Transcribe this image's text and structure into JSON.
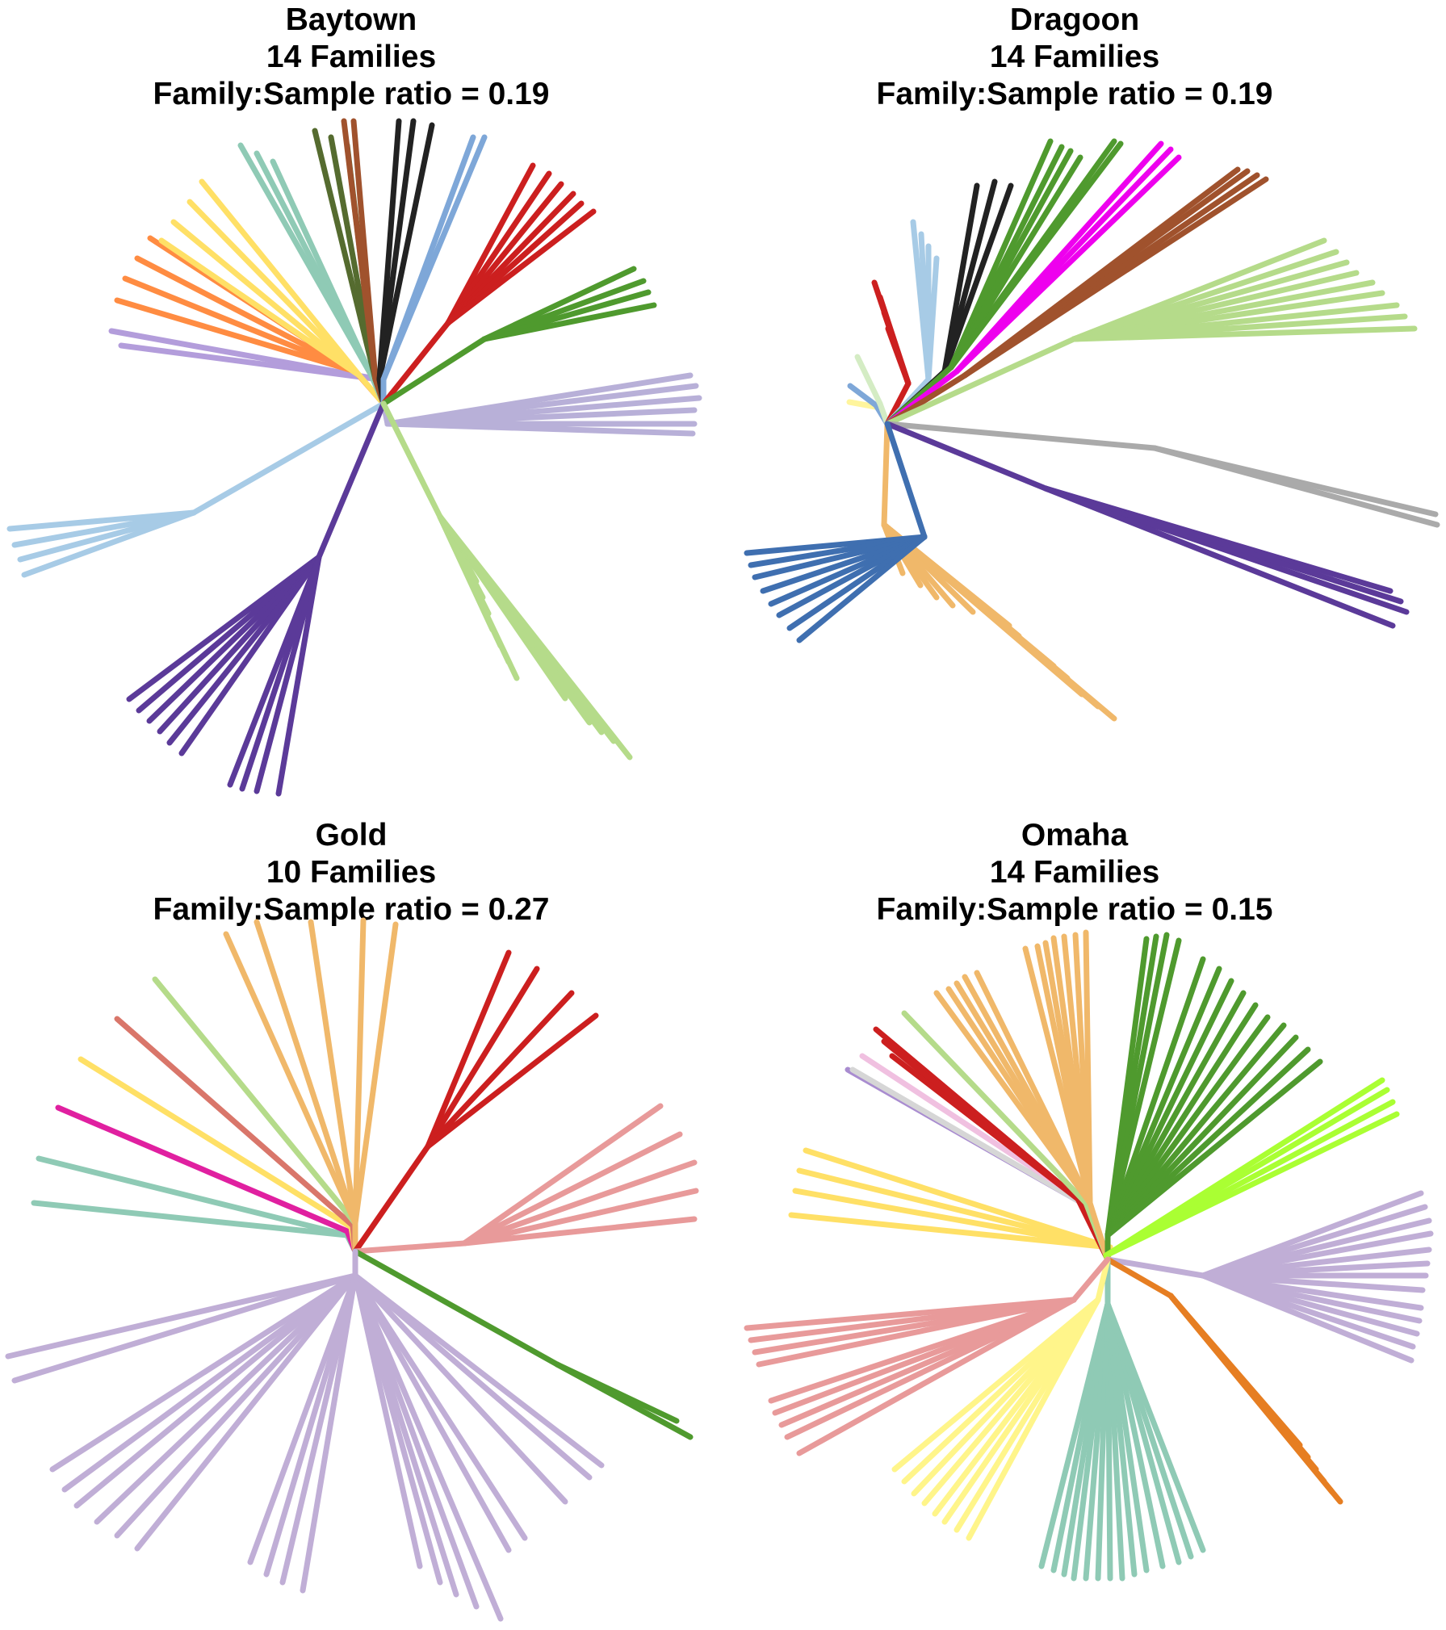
{
  "panels": [
    {
      "title": "Baytown",
      "families_label": "14 Families",
      "ratio_label": "Family:Sample ratio = 0.19",
      "colors": [
        "#b39ddb",
        "#ff8c42",
        "#ffe066",
        "#8fcab5",
        "#556b2f",
        "#a0522d",
        "#222222",
        "#7ea7d8",
        "#cc1f1f",
        "#4f9a2e",
        "#b8b0d8",
        "#a7cbe6",
        "#5b3a99",
        "#b5db8a"
      ]
    },
    {
      "title": "Dragoon",
      "families_label": "14 Families",
      "ratio_label": "Family:Sample ratio = 0.19",
      "colors": [
        "#fff59d",
        "#7ea7d8",
        "#d4ecc4",
        "#cc1f1f",
        "#a7cbe6",
        "#222222",
        "#4f9a2e",
        "#ee00ee",
        "#a0522d",
        "#b5db8a",
        "#aaaaaa",
        "#5b3a99",
        "#f0b86a",
        "#3f6fb0"
      ]
    },
    {
      "title": "Gold",
      "families_label": "10 Families",
      "ratio_label": "Family:Sample ratio = 0.27",
      "colors": [
        "#8fcab5",
        "#e020a0",
        "#ffe066",
        "#d9766a",
        "#b5db8a",
        "#f0b86a",
        "#cc1f1f",
        "#e89a9a",
        "#4f9a2e",
        "#c0aed6"
      ]
    },
    {
      "title": "Omaha",
      "families_label": "14 Families",
      "ratio_label": "Family:Sample ratio = 0.15",
      "colors": [
        "#ffe066",
        "#a98cd0",
        "#d6d6d6",
        "#f0c0e0",
        "#cc1f1f",
        "#b5db8a",
        "#f0b86a",
        "#4f9a2e",
        "#aaff33",
        "#c0aed6",
        "#e67e22",
        "#8fcab5",
        "#fff58a",
        "#e89a9a"
      ]
    }
  ]
}
